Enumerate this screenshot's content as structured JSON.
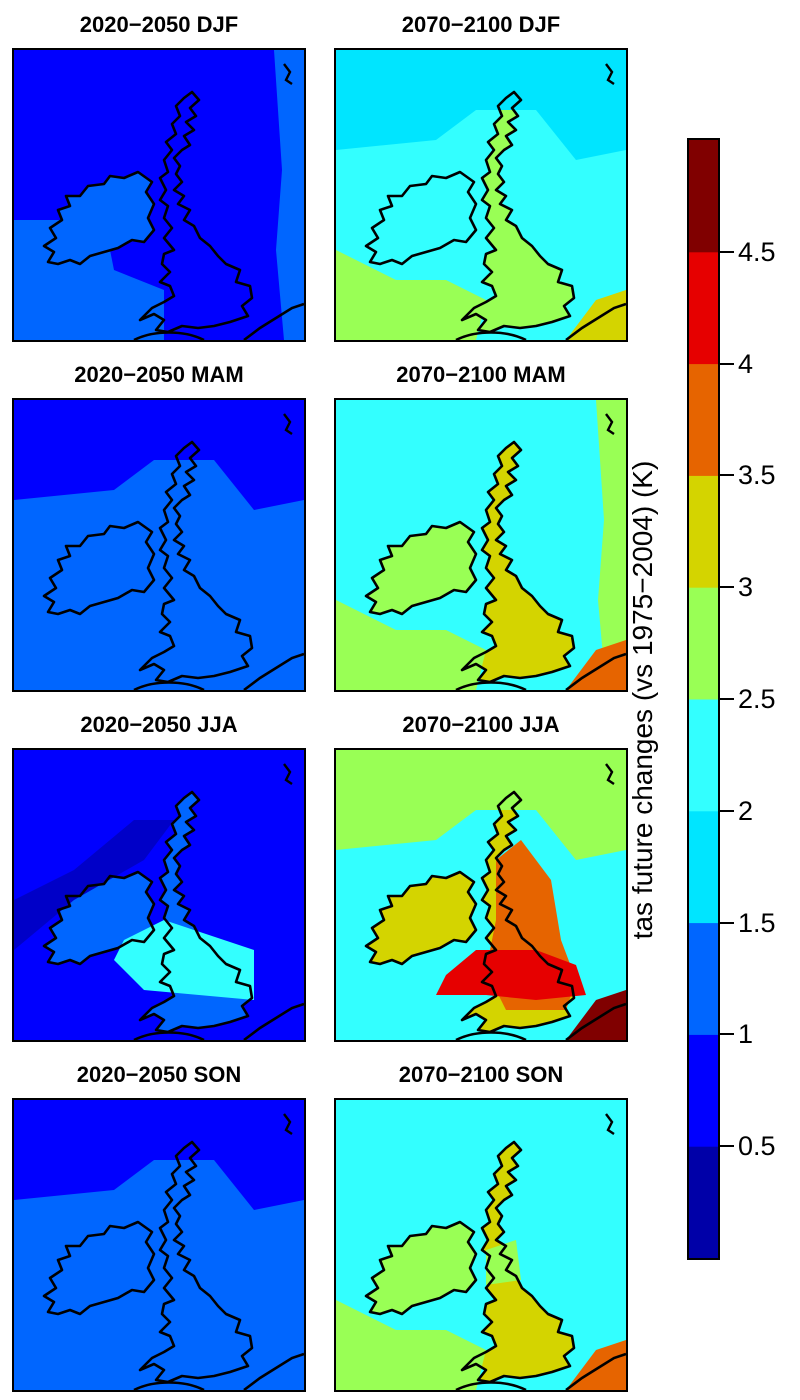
{
  "panels": [
    {
      "title": "2020−2050 DJF",
      "base": "#0000ff",
      "land": "#0000ff",
      "sea": "#0000ff",
      "patches": [
        {
          "color": "#0066ff",
          "region": "west-sea"
        },
        {
          "color": "#0066ff",
          "region": "ireland"
        },
        {
          "color": "#0066ff",
          "region": "east-strip"
        }
      ]
    },
    {
      "title": "2070−2100 DJF",
      "base": "#33ffff",
      "land": "#99ff55",
      "sea": "#33ffff",
      "patches": [
        {
          "color": "#00e5ff",
          "region": "north-sea-band"
        },
        {
          "color": "#33ffff",
          "region": "ireland"
        },
        {
          "color": "#99ff55",
          "region": "south-west-sea"
        },
        {
          "color": "#d4d400",
          "region": "south-east-corner"
        }
      ]
    },
    {
      "title": "2020−2050 MAM",
      "base": "#0000ff",
      "land": "#0066ff",
      "sea": "#0066ff",
      "patches": [
        {
          "color": "#0000ff",
          "region": "north-sea-band"
        }
      ]
    },
    {
      "title": "2070−2100 MAM",
      "base": "#33ffff",
      "land": "#d4d400",
      "sea": "#33ffff",
      "patches": [
        {
          "color": "#99ff55",
          "region": "ireland"
        },
        {
          "color": "#99ff55",
          "region": "south-west-sea"
        },
        {
          "color": "#99ff55",
          "region": "east-strip"
        },
        {
          "color": "#e66400",
          "region": "south-east-corner"
        }
      ]
    },
    {
      "title": "2020−2050 JJA",
      "base": "#0000ff",
      "land": "#0066ff",
      "sea": "#0000ff",
      "patches": [
        {
          "color": "#0000c8",
          "region": "north-west-band"
        },
        {
          "color": "#33ffff",
          "region": "channel"
        }
      ]
    },
    {
      "title": "2070−2100 JJA",
      "base": "#33ffff",
      "land": "#d4d400",
      "sea": "#33ffff",
      "patches": [
        {
          "color": "#99ff55",
          "region": "north-sea-band"
        },
        {
          "color": "#e66400",
          "region": "england"
        },
        {
          "color": "#e60000",
          "region": "south-england"
        },
        {
          "color": "#d4d400",
          "region": "ireland"
        },
        {
          "color": "#800000",
          "region": "south-east-corner"
        }
      ]
    },
    {
      "title": "2020−2050 SON",
      "base": "#0000ff",
      "land": "#0066ff",
      "sea": "#0066ff",
      "patches": [
        {
          "color": "#0000ff",
          "region": "north-sea-band"
        }
      ]
    },
    {
      "title": "2070−2100 SON",
      "base": "#33ffff",
      "land": "#d4d400",
      "sea": "#33ffff",
      "patches": [
        {
          "color": "#99ff55",
          "region": "ireland"
        },
        {
          "color": "#99ff55",
          "region": "north-england"
        },
        {
          "color": "#99ff55",
          "region": "south-west-sea"
        },
        {
          "color": "#e66400",
          "region": "south-east-corner"
        }
      ]
    }
  ],
  "colorbar": {
    "label": "tas future changes (vs 1975−2004) (K)",
    "range": [
      0,
      5
    ],
    "colors": [
      "#0000a8",
      "#0000ff",
      "#0066ff",
      "#00e5ff",
      "#33ffff",
      "#99ff55",
      "#d4d400",
      "#e66400",
      "#e60000",
      "#800000"
    ],
    "ticks": [
      {
        "value": 0.5,
        "label": "0.5"
      },
      {
        "value": 1,
        "label": "1"
      },
      {
        "value": 1.5,
        "label": "1.5"
      },
      {
        "value": 2,
        "label": "2"
      },
      {
        "value": 2.5,
        "label": "2.5"
      },
      {
        "value": 3,
        "label": "3"
      },
      {
        "value": 3.5,
        "label": "3.5"
      },
      {
        "value": 4,
        "label": "4"
      },
      {
        "value": 4.5,
        "label": "4.5"
      }
    ]
  }
}
